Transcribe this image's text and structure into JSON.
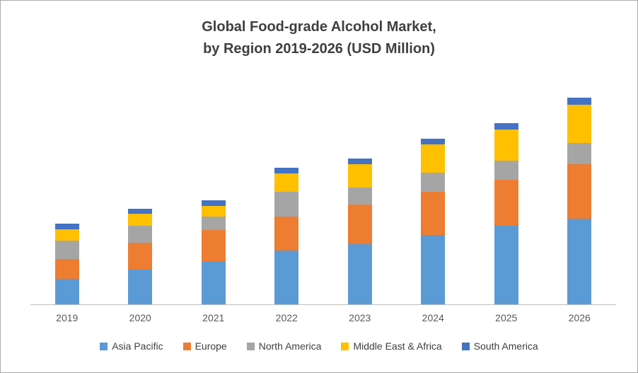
{
  "title": {
    "line1": "Global Food-grade Alcohol Market,",
    "line2": "by Region 2019-2026 (USD Million)"
  },
  "chart_data": {
    "type": "bar",
    "stacked": true,
    "title": "Global Food-grade Alcohol Market, by Region 2019-2026 (USD Million)",
    "xlabel": "",
    "ylabel": "",
    "categories": [
      "2019",
      "2020",
      "2021",
      "2022",
      "2023",
      "2024",
      "2025",
      "2026"
    ],
    "series": [
      {
        "name": "Asia Pacific",
        "color": "#5B9BD5",
        "values": [
          380,
          510,
          640,
          790,
          890,
          1020,
          1160,
          1260
        ]
      },
      {
        "name": "Europe",
        "color": "#ED7D31",
        "values": [
          290,
          400,
          450,
          500,
          580,
          640,
          680,
          800
        ]
      },
      {
        "name": "North America",
        "color": "#A5A5A5",
        "values": [
          270,
          250,
          200,
          370,
          250,
          280,
          280,
          320
        ]
      },
      {
        "name": "Middle East & Africa",
        "color": "#FFC000",
        "values": [
          170,
          170,
          160,
          270,
          340,
          420,
          460,
          560
        ]
      },
      {
        "name": "South America",
        "color": "#4472C4",
        "values": [
          80,
          80,
          80,
          80,
          90,
          80,
          90,
          100
        ]
      }
    ],
    "ylim": [
      0,
      3200
    ],
    "grid": false,
    "y_axis_labels_visible": false,
    "legend_position": "bottom"
  }
}
